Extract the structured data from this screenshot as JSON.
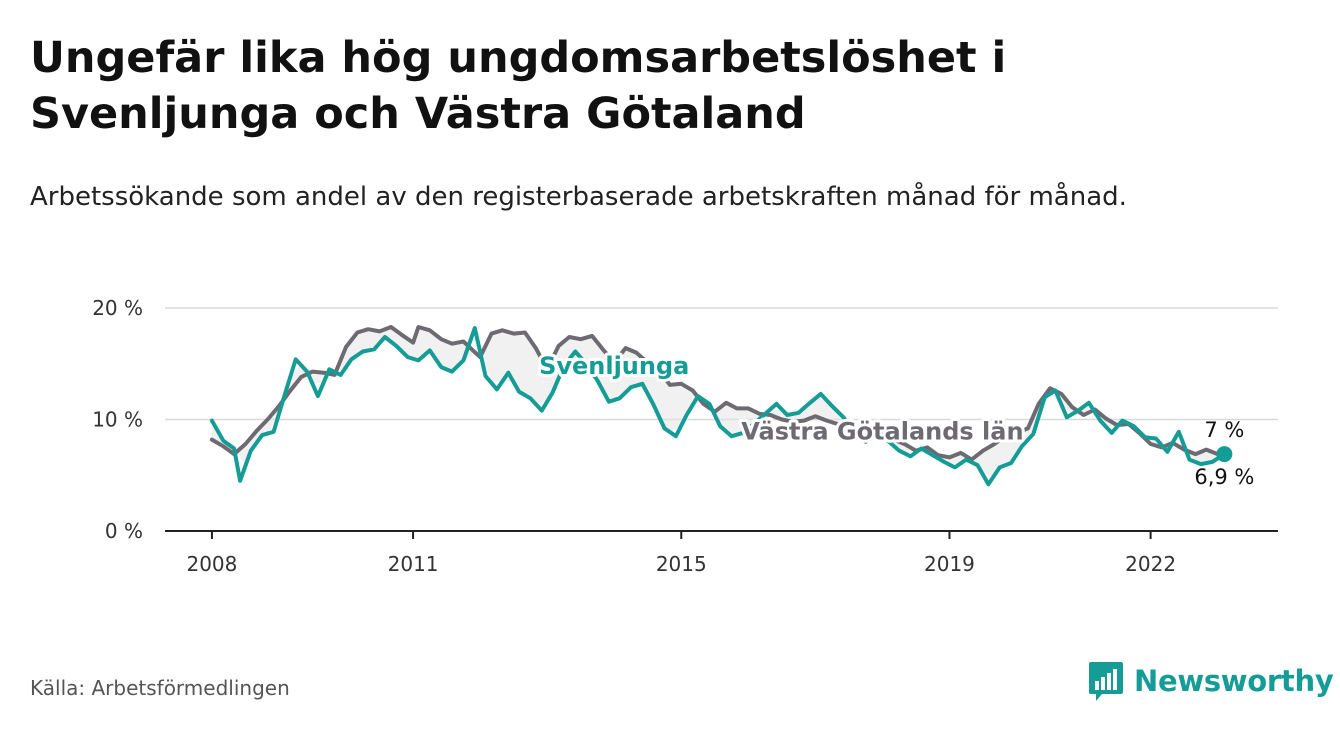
{
  "title": "Ungefär lika hög ungdomsarbetslöshet i Svenljunga och Västra Götaland",
  "subtitle": "Arbetssökande som andel av den registerbaserade arbetskraften månad för månad.",
  "source": "Källa: Arbetsförmedlingen",
  "brand": "Newsworthy",
  "colors": {
    "teal": "#159c96",
    "grey": "#6d6a72",
    "grid": "#d9d9d9",
    "axis": "#222222"
  },
  "chart_data": {
    "type": "line",
    "title": "Ungefär lika hög ungdomsarbetslöshet i Svenljunga och Västra Götaland",
    "xlabel": "",
    "ylabel": "",
    "x_range": [
      2007.3,
      2023.9
    ],
    "ylim": [
      0,
      20
    ],
    "y_ticks": [
      0,
      10,
      20
    ],
    "y_tick_labels": [
      "0 %",
      "10 %",
      "20 %"
    ],
    "x_ticks": [
      2008,
      2011,
      2015,
      2019,
      2022
    ],
    "x_tick_labels": [
      "2008",
      "2011",
      "2015",
      "2019",
      "2022"
    ],
    "grid": true,
    "series": [
      {
        "name": "Västra Götalands län",
        "color": "#6d6a72",
        "end_label": "7 %",
        "points": [
          [
            2008.0,
            8.2
          ],
          [
            2008.17,
            7.6
          ],
          [
            2008.33,
            6.9
          ],
          [
            2008.5,
            7.8
          ],
          [
            2008.67,
            9.0
          ],
          [
            2008.83,
            10.0
          ],
          [
            2009.0,
            11.2
          ],
          [
            2009.17,
            12.6
          ],
          [
            2009.33,
            13.8
          ],
          [
            2009.5,
            14.3
          ],
          [
            2009.67,
            14.2
          ],
          [
            2009.83,
            14.0
          ],
          [
            2010.0,
            16.5
          ],
          [
            2010.17,
            17.8
          ],
          [
            2010.33,
            18.1
          ],
          [
            2010.5,
            17.9
          ],
          [
            2010.67,
            18.3
          ],
          [
            2010.83,
            17.6
          ],
          [
            2011.0,
            16.9
          ],
          [
            2011.08,
            18.3
          ],
          [
            2011.25,
            18.0
          ],
          [
            2011.42,
            17.2
          ],
          [
            2011.58,
            16.8
          ],
          [
            2011.75,
            17.0
          ],
          [
            2012.0,
            15.6
          ],
          [
            2012.17,
            17.7
          ],
          [
            2012.33,
            18.0
          ],
          [
            2012.5,
            17.7
          ],
          [
            2012.67,
            17.8
          ],
          [
            2012.83,
            16.4
          ],
          [
            2013.0,
            14.5
          ],
          [
            2013.17,
            16.6
          ],
          [
            2013.33,
            17.4
          ],
          [
            2013.5,
            17.2
          ],
          [
            2013.67,
            17.5
          ],
          [
            2013.83,
            16.3
          ],
          [
            2014.0,
            15.1
          ],
          [
            2014.17,
            16.4
          ],
          [
            2014.33,
            16.0
          ],
          [
            2014.5,
            15.1
          ],
          [
            2014.67,
            14.4
          ],
          [
            2014.83,
            13.1
          ],
          [
            2015.0,
            13.2
          ],
          [
            2015.17,
            12.6
          ],
          [
            2015.33,
            11.4
          ],
          [
            2015.5,
            10.7
          ],
          [
            2015.67,
            11.5
          ],
          [
            2015.83,
            11.0
          ],
          [
            2016.0,
            11.0
          ],
          [
            2016.17,
            10.5
          ],
          [
            2016.33,
            10.4
          ],
          [
            2016.5,
            10.0
          ],
          [
            2016.67,
            9.8
          ],
          [
            2016.83,
            9.9
          ],
          [
            2017.0,
            10.3
          ],
          [
            2017.17,
            9.9
          ],
          [
            2017.33,
            9.6
          ],
          [
            2017.5,
            9.1
          ],
          [
            2017.67,
            8.5
          ],
          [
            2017.83,
            8.7
          ],
          [
            2018.0,
            8.3
          ],
          [
            2018.17,
            8.2
          ],
          [
            2018.33,
            7.8
          ],
          [
            2018.5,
            7.2
          ],
          [
            2018.67,
            7.5
          ],
          [
            2018.83,
            6.8
          ],
          [
            2019.0,
            6.6
          ],
          [
            2019.17,
            7.0
          ],
          [
            2019.33,
            6.4
          ],
          [
            2019.5,
            7.2
          ],
          [
            2019.67,
            7.8
          ],
          [
            2019.83,
            8.5
          ],
          [
            2020.0,
            8.8
          ],
          [
            2020.17,
            9.2
          ],
          [
            2020.33,
            11.4
          ],
          [
            2020.5,
            12.8
          ],
          [
            2020.67,
            12.3
          ],
          [
            2020.83,
            11.1
          ],
          [
            2021.0,
            10.4
          ],
          [
            2021.17,
            10.9
          ],
          [
            2021.33,
            10.1
          ],
          [
            2021.5,
            9.5
          ],
          [
            2021.67,
            9.6
          ],
          [
            2021.83,
            8.8
          ],
          [
            2022.0,
            7.8
          ],
          [
            2022.17,
            7.5
          ],
          [
            2022.33,
            7.9
          ],
          [
            2022.5,
            7.3
          ],
          [
            2022.67,
            6.9
          ],
          [
            2022.83,
            7.3
          ],
          [
            2023.0,
            6.9
          ],
          [
            2023.1,
            7.0
          ]
        ]
      },
      {
        "name": "Svenljunga",
        "color": "#159c96",
        "end_label": "6,9 %",
        "points": [
          [
            2008.0,
            9.9
          ],
          [
            2008.17,
            8.1
          ],
          [
            2008.33,
            7.4
          ],
          [
            2008.42,
            4.5
          ],
          [
            2008.58,
            7.2
          ],
          [
            2008.75,
            8.6
          ],
          [
            2008.92,
            8.9
          ],
          [
            2009.08,
            12.1
          ],
          [
            2009.25,
            15.4
          ],
          [
            2009.42,
            14.3
          ],
          [
            2009.58,
            12.1
          ],
          [
            2009.75,
            14.5
          ],
          [
            2009.92,
            14.0
          ],
          [
            2010.08,
            15.4
          ],
          [
            2010.25,
            16.1
          ],
          [
            2010.42,
            16.3
          ],
          [
            2010.58,
            17.4
          ],
          [
            2010.75,
            16.6
          ],
          [
            2010.92,
            15.6
          ],
          [
            2011.08,
            15.3
          ],
          [
            2011.25,
            16.2
          ],
          [
            2011.42,
            14.7
          ],
          [
            2011.58,
            14.3
          ],
          [
            2011.75,
            15.3
          ],
          [
            2011.92,
            18.2
          ],
          [
            2012.08,
            13.9
          ],
          [
            2012.25,
            12.7
          ],
          [
            2012.42,
            14.2
          ],
          [
            2012.58,
            12.5
          ],
          [
            2012.75,
            11.9
          ],
          [
            2012.92,
            10.8
          ],
          [
            2013.08,
            12.4
          ],
          [
            2013.25,
            14.8
          ],
          [
            2013.42,
            16.1
          ],
          [
            2013.58,
            15.0
          ],
          [
            2013.75,
            13.5
          ],
          [
            2013.92,
            11.6
          ],
          [
            2014.08,
            11.9
          ],
          [
            2014.25,
            12.9
          ],
          [
            2014.42,
            13.2
          ],
          [
            2014.58,
            11.4
          ],
          [
            2014.75,
            9.2
          ],
          [
            2014.92,
            8.5
          ],
          [
            2015.08,
            10.4
          ],
          [
            2015.25,
            12.1
          ],
          [
            2015.42,
            11.4
          ],
          [
            2015.58,
            9.4
          ],
          [
            2015.75,
            8.5
          ],
          [
            2015.92,
            8.8
          ],
          [
            2016.08,
            9.6
          ],
          [
            2016.25,
            10.5
          ],
          [
            2016.42,
            11.4
          ],
          [
            2016.58,
            10.4
          ],
          [
            2016.75,
            10.6
          ],
          [
            2016.92,
            11.5
          ],
          [
            2017.08,
            12.3
          ],
          [
            2017.25,
            11.2
          ],
          [
            2017.42,
            10.2
          ],
          [
            2017.58,
            8.8
          ],
          [
            2017.75,
            8.0
          ],
          [
            2017.92,
            9.6
          ],
          [
            2018.08,
            8.1
          ],
          [
            2018.25,
            7.2
          ],
          [
            2018.42,
            6.7
          ],
          [
            2018.58,
            7.4
          ],
          [
            2018.75,
            6.8
          ],
          [
            2018.92,
            6.2
          ],
          [
            2019.08,
            5.7
          ],
          [
            2019.25,
            6.4
          ],
          [
            2019.42,
            5.9
          ],
          [
            2019.58,
            4.2
          ],
          [
            2019.75,
            5.7
          ],
          [
            2019.92,
            6.1
          ],
          [
            2020.08,
            7.6
          ],
          [
            2020.25,
            8.7
          ],
          [
            2020.42,
            12.0
          ],
          [
            2020.58,
            12.6
          ],
          [
            2020.75,
            10.2
          ],
          [
            2020.92,
            10.8
          ],
          [
            2021.08,
            11.5
          ],
          [
            2021.25,
            9.9
          ],
          [
            2021.42,
            8.8
          ],
          [
            2021.58,
            9.9
          ],
          [
            2021.75,
            9.4
          ],
          [
            2021.92,
            8.4
          ],
          [
            2022.08,
            8.3
          ],
          [
            2022.25,
            7.1
          ],
          [
            2022.42,
            8.9
          ],
          [
            2022.58,
            6.4
          ],
          [
            2022.75,
            6.0
          ],
          [
            2022.92,
            6.2
          ],
          [
            2023.1,
            6.9
          ]
        ]
      }
    ],
    "annotations": [
      {
        "text": "Svenljunga",
        "series": "Svenljunga",
        "x": 2014.0,
        "y": 14.1
      },
      {
        "text": "Västra Götalands län",
        "series": "Västra Götalands län",
        "x": 2018.0,
        "y": 8.2
      }
    ]
  }
}
